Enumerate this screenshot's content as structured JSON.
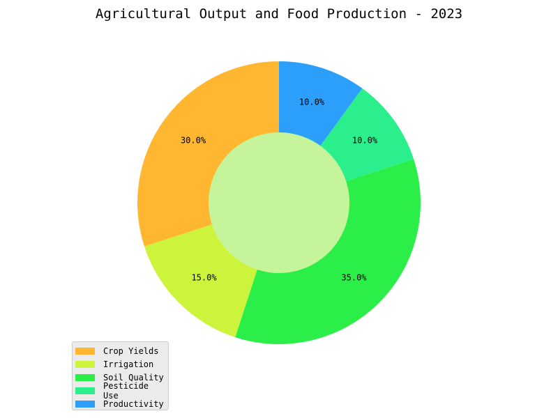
{
  "chart_data": {
    "type": "pie",
    "variant": "donut",
    "title": "Agricultural Output and Food Production - 2023",
    "categories": [
      "Crop Yields",
      "Irrigation",
      "Soil Quality",
      "Pesticide Use",
      "Productivity"
    ],
    "values": [
      30,
      15,
      35,
      10,
      10
    ],
    "labels": [
      "30.0%",
      "15.0%",
      "35.0%",
      "10.0%",
      "10.0%"
    ],
    "colors": [
      "#ffb732",
      "#cdf43c",
      "#2bef48",
      "#2bef8d",
      "#2b9ffa"
    ],
    "center_color": "#c6f49a",
    "start_angle_deg": 90,
    "direction": "counterclockwise",
    "legend_position": "bottom-left"
  }
}
